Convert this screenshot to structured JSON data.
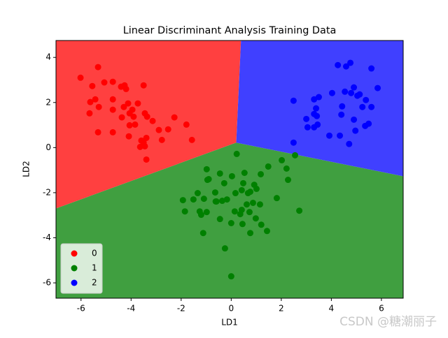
{
  "chart_data": {
    "type": "scatter",
    "title": "Linear Discriminant Analysis Training Data",
    "x_label": "LD1",
    "y_label": "LD2",
    "xlim": [
      -7.0,
      6.87
    ],
    "ylim": [
      -6.68,
      4.75
    ],
    "xticks": [
      -6,
      -4,
      -2,
      0,
      2,
      4,
      6
    ],
    "yticks": [
      -6,
      -4,
      -2,
      0,
      2,
      4
    ],
    "legend_position": "lower left",
    "regions": [
      {
        "color": "#ff4040",
        "x": [
          -7.0,
          0.39,
          0.2,
          -7.0
        ],
        "y": [
          4.75,
          4.75,
          0.22,
          -2.7
        ]
      },
      {
        "color": "#409f40",
        "x": [
          -7.0,
          0.2,
          6.87,
          6.87,
          -7.0
        ],
        "y": [
          -2.7,
          0.22,
          -1.27,
          -6.68,
          -6.68
        ]
      },
      {
        "color": "#4040ff",
        "x": [
          0.39,
          6.87,
          6.87,
          0.2
        ],
        "y": [
          4.75,
          4.75,
          -1.27,
          0.22
        ]
      }
    ],
    "series": [
      {
        "name": "0",
        "color": "#ff0000",
        "x": [
          -6.02,
          -5.32,
          -5.55,
          -5.07,
          -4.73,
          -4.4,
          -4.26,
          -4.2,
          -3.5,
          -5.43,
          -5.63,
          -5.29,
          -5.66,
          -4.73,
          -4.73,
          -4.12,
          -3.73,
          -4.29,
          -3.95,
          -4.06,
          -3.9,
          -4.37,
          -3.45,
          -3.36,
          -3.14,
          -2.27,
          -4.06,
          -3.84,
          -5.32,
          -4.73,
          -4.09,
          -3.59,
          -3.39,
          -3.5,
          -3.64,
          -3.45,
          -2.89,
          -2.52,
          -2.77,
          -1.79,
          -1.57,
          -3.39
        ],
        "y": [
          3.1,
          3.57,
          2.73,
          2.89,
          2.92,
          2.7,
          2.76,
          2.6,
          2.76,
          2.14,
          2.02,
          1.8,
          1.52,
          2.14,
          1.68,
          1.96,
          1.96,
          1.8,
          1.68,
          1.52,
          1.37,
          1.34,
          1.52,
          1.37,
          1.18,
          1.34,
          0.99,
          1.02,
          0.68,
          0.68,
          0.5,
          0.31,
          0.43,
          0.22,
          0.03,
          0.06,
          0.78,
          0.81,
          0.34,
          1.02,
          0.34,
          -0.53
        ]
      },
      {
        "name": "1",
        "color": "#008000",
        "x": [
          0.22,
          2.02,
          2.55,
          -0.98,
          1.48,
          2.21,
          1.18,
          -0.45,
          0.53,
          0.03,
          -0.9,
          -0.95,
          0.48,
          -0.28,
          0.92,
          2.27,
          1.01,
          0.76,
          0.42,
          -1.34,
          0.17,
          -0.64,
          0.67,
          -1.93,
          -1.51,
          -1.09,
          -0.59,
          -0.36,
          -0.62,
          -0.17,
          1.82,
          0.62,
          0.87,
          1.15,
          -1.85,
          -1.26,
          -0.98,
          0.42,
          0.14,
          0.36,
          0.73,
          2.72,
          0.98,
          -0.45,
          -1.2,
          0.45,
          0,
          1.2,
          1.43,
          0.76,
          -1.12,
          -0.25,
          0
        ],
        "y": [
          -0.28,
          -0.56,
          -0.34,
          -0.96,
          -0.84,
          -0.93,
          -1.18,
          -1.15,
          -1.12,
          -1.27,
          -1.4,
          -1.43,
          -1.58,
          -1.58,
          -1.65,
          -1.43,
          -1.83,
          -1.96,
          -1.89,
          -2.02,
          -2.02,
          -1.99,
          -2.02,
          -2.33,
          -2.3,
          -2.27,
          -2.39,
          -2.36,
          -2.39,
          -2.3,
          -2.24,
          -2.52,
          -2.45,
          -2.52,
          -2.83,
          -2.83,
          -2.86,
          -2.76,
          -2.83,
          -2.95,
          -2.86,
          -2.8,
          -3.14,
          -3.17,
          -2.98,
          -3.39,
          -3.35,
          -3.42,
          -3.7,
          -3.79,
          -3.79,
          -4.47,
          -5.71
        ]
      },
      {
        "name": "2",
        "color": "#0000ff",
        "x": [
          4.26,
          4.76,
          4.59,
          5.6,
          5.85,
          4.9,
          4.03,
          4.54,
          4.79,
          5.13,
          5.04,
          5.38,
          3.5,
          3.31,
          2.49,
          5.24,
          5.6,
          3.39,
          4.43,
          3.31,
          3.42,
          3.0,
          4.4,
          4.9,
          3.45,
          3.31,
          5.35,
          5.49,
          4.96,
          3.92,
          4.34,
          4.71,
          2.49,
          3.05
        ],
        "y": [
          3.66,
          3.76,
          3.6,
          3.51,
          2.64,
          2.67,
          2.42,
          2.48,
          2.42,
          2.36,
          2.3,
          2.11,
          2.24,
          2.14,
          2.08,
          1.8,
          1.8,
          1.74,
          1.83,
          1.49,
          1.4,
          1.27,
          1.46,
          1.24,
          1.02,
          0.9,
          0.96,
          1.06,
          0.75,
          0.53,
          0.53,
          0.16,
          0.22,
          0.9
        ]
      }
    ]
  },
  "watermark": "CSDN @糖潮丽子"
}
